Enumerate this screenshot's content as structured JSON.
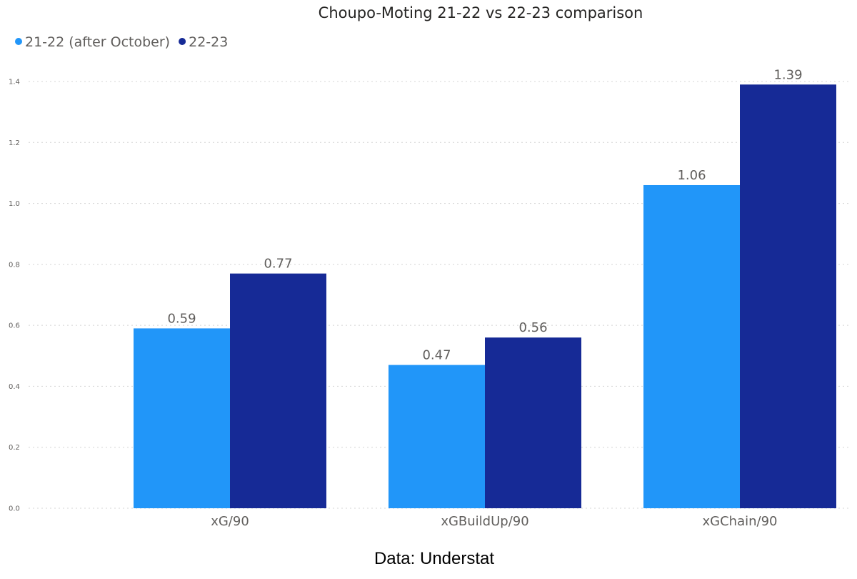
{
  "chart_data": {
    "type": "bar",
    "title": "Choupo-Moting 21-22 vs 22-23 comparison",
    "categories": [
      "xG/90",
      "xGBuildUp/90",
      "xGChain/90"
    ],
    "series": [
      {
        "name": "21-22 (after October)",
        "color": "#2196F9",
        "values": [
          0.59,
          0.47,
          1.06
        ]
      },
      {
        "name": "22-23",
        "color": "#162A96",
        "values": [
          0.77,
          0.56,
          1.39
        ]
      }
    ],
    "yticks": [
      "0.0",
      "0.2",
      "0.4",
      "0.6",
      "0.8",
      "1.0",
      "1.2",
      "1.4"
    ],
    "ylim": [
      0,
      1.4
    ],
    "grid": true,
    "legend": "top-left",
    "data_labels": true
  },
  "caption": "Data: Understat"
}
